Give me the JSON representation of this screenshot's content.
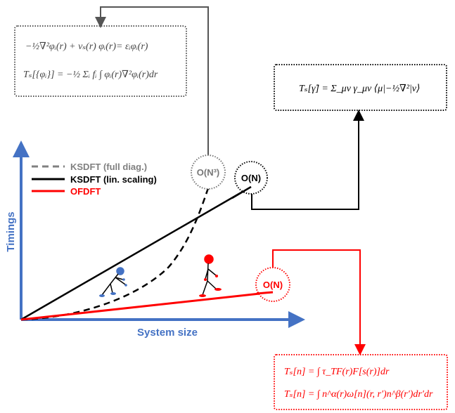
{
  "legend": [
    {
      "label": "KSDFT (full diag.)",
      "color": "#808080",
      "style": "dashed"
    },
    {
      "label": "KSDFT (lin. scaling)",
      "color": "#000000",
      "style": "solid"
    },
    {
      "label": "OFDFT",
      "color": "#ff0000",
      "style": "solid"
    }
  ],
  "axes": {
    "y_label": "Timings",
    "x_label": "System size",
    "color": "#4472c4"
  },
  "badges": {
    "ks_full": "O(N³)",
    "ks_lin": "O(N)",
    "of": "O(N)"
  },
  "boxes": {
    "ks_full": {
      "line1": "−½∇²φᵢ(r) + vₛ(r) φᵢ(r)= εᵢφᵢ(r)",
      "line2": "Tₛ[{φᵢ}] = −½ Σᵢ fᵢ ∫ φᵢ(r)∇²φᵢ(r)dr"
    },
    "ks_lin": {
      "line1": "Tₛ[γ̂] = Σ_μν γ_μν ⟨μ|−½∇²|ν⟩"
    },
    "of": {
      "line1": "Tₛ[n] = ∫ τ_TF(r)F[s(r)]dr",
      "line2": "Tₛ[n] = ∫ n^α(r)ω[n](r, r′)n^β(r′)dr′dr"
    }
  }
}
